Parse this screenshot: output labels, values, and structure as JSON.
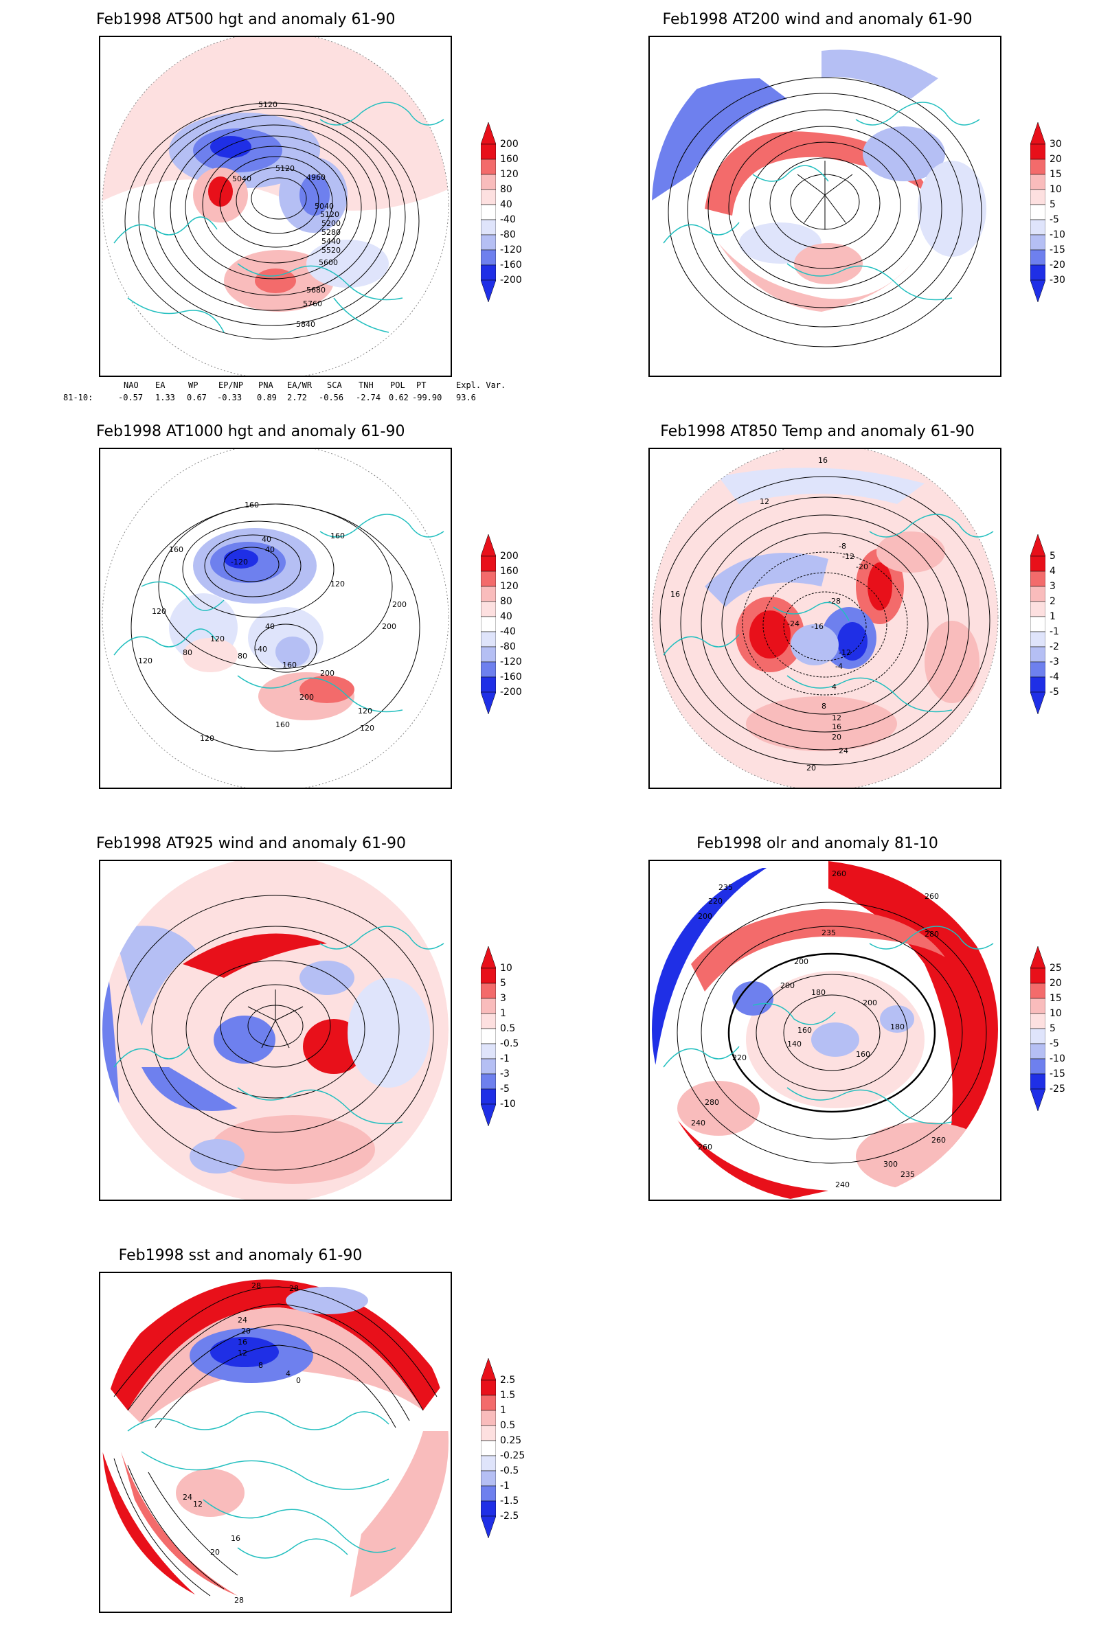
{
  "panels": [
    {
      "id": "p1",
      "title": "Feb1998 AT500 hgt and anomaly 61-90",
      "colorbar": {
        "style": "hgt",
        "labels": [
          "200",
          "160",
          "120",
          "80",
          "40",
          "-40",
          "-80",
          "-120",
          "-160",
          "-200"
        ]
      },
      "contour_labels": [
        "5120",
        "5040",
        "5120",
        "4960",
        "5040",
        "5120",
        "5200",
        "5280",
        "5440",
        "5520",
        "5600",
        "5680",
        "5760",
        "5840"
      ]
    },
    {
      "id": "p2",
      "title": "Feb1998 AT200 wind and anomaly 61-90",
      "colorbar": {
        "style": "wind",
        "labels": [
          "30",
          "20",
          "15",
          "10",
          "5",
          "-5",
          "-10",
          "-15",
          "-20",
          "-30"
        ]
      },
      "contour_labels": []
    },
    {
      "id": "p3",
      "title": "Feb1998 AT1000 hgt and anomaly 61-90",
      "colorbar": {
        "style": "hgt",
        "labels": [
          "200",
          "160",
          "120",
          "80",
          "40",
          "-40",
          "-80",
          "-120",
          "-160",
          "-200"
        ]
      },
      "contour_labels": [
        "160",
        "160",
        "40",
        "40",
        "-120",
        "160",
        "120",
        "120",
        "200",
        "200",
        "120",
        "40",
        "-40",
        "80",
        "160",
        "200",
        "120",
        "80",
        "160",
        "120",
        "120",
        "200",
        "120"
      ]
    },
    {
      "id": "p4",
      "title": "Feb1998 AT850 Temp and anomaly 61-90",
      "colorbar": {
        "style": "temp",
        "labels": [
          "5",
          "4",
          "3",
          "2",
          "1",
          "-1",
          "-2",
          "-3",
          "-4",
          "-5"
        ]
      },
      "contour_labels": [
        "16",
        "12",
        "16",
        "-8",
        "-12",
        "-20",
        "-28",
        "-24",
        "-16",
        "-12",
        "-4",
        "4",
        "8",
        "12",
        "16",
        "20",
        "24",
        "20"
      ]
    },
    {
      "id": "p5",
      "title": "Feb1998 AT925 wind and anomaly 61-90",
      "colorbar": {
        "style": "wind925",
        "labels": [
          "10",
          "5",
          "3",
          "1",
          "0.5",
          "-0.5",
          "-1",
          "-3",
          "-5",
          "-10"
        ]
      },
      "contour_labels": []
    },
    {
      "id": "p6",
      "title": "Feb1998 olr and anomaly 81-10",
      "colorbar": {
        "style": "olr",
        "labels": [
          "25",
          "20",
          "15",
          "10",
          "5",
          "-5",
          "-10",
          "-15",
          "-25"
        ]
      },
      "contour_labels": [
        "260",
        "235",
        "220",
        "200",
        "260",
        "280",
        "235",
        "200",
        "180",
        "160",
        "140",
        "200",
        "180",
        "160",
        "220",
        "240",
        "260",
        "280",
        "300",
        "235",
        "260",
        "240",
        "200"
      ]
    },
    {
      "id": "p7",
      "title": "Feb1998 sst and anomaly 61-90",
      "colorbar": {
        "style": "sst",
        "labels": [
          "2.5",
          "1.5",
          "1",
          "0.5",
          "0.25",
          "-0.25",
          "-0.5",
          "-1",
          "-1.5",
          "-2.5"
        ]
      },
      "contour_labels": [
        "28",
        "28",
        "24",
        "20",
        "16",
        "12",
        "8",
        "4",
        "0",
        "12",
        "16",
        "20",
        "28",
        "24"
      ]
    }
  ],
  "indices": {
    "headers": [
      "NAO",
      "EA",
      "WP",
      "EP/NP",
      "PNA",
      "EA/WR",
      "SCA",
      "TNH",
      "POL",
      "PT",
      "Expl. Var."
    ],
    "row_label": "81-10:",
    "values": [
      "-0.57",
      "1.33",
      "0.67",
      "-0.33",
      "0.89",
      "2.72",
      "-0.56",
      "-2.74",
      "0.62",
      "-99.90",
      "93.6"
    ]
  },
  "colors": {
    "frame": "#000000",
    "coast": "#22bfbf",
    "contour": "#000000",
    "red_strong": "#e8101a",
    "red_mid": "#f36b6b",
    "red_light": "#f9bcbc",
    "red_pale": "#fde0e0",
    "blue_pale": "#dfe4fb",
    "blue_light": "#b5bff4",
    "blue_mid": "#6e80ee",
    "blue_strong": "#1f2fe6"
  }
}
